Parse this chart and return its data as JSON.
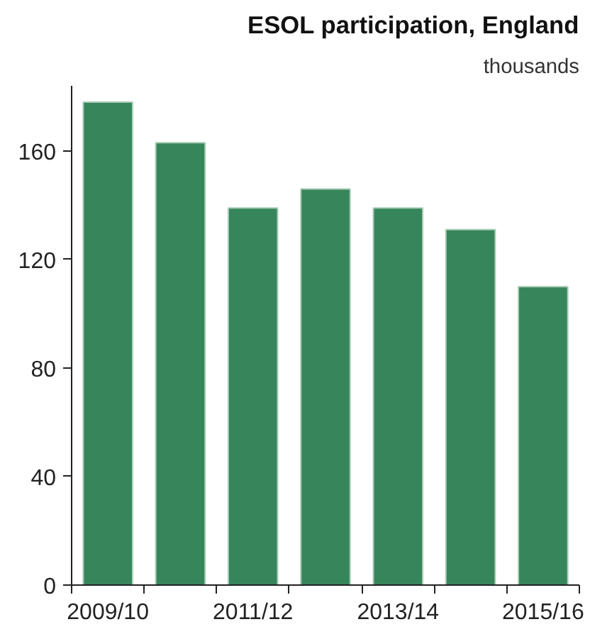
{
  "chart_data": {
    "type": "bar",
    "title": "ESOL participation, England",
    "subtitle": "thousands",
    "categories": [
      "2009/10",
      null,
      "2011/12",
      null,
      "2013/14",
      null,
      "2015/16"
    ],
    "values": [
      178,
      163,
      139,
      146,
      139,
      131,
      110
    ],
    "color": "#37855b",
    "ylim": [
      0,
      184
    ],
    "yticks": [
      0,
      40,
      80,
      120,
      160
    ],
    "grid": false
  }
}
